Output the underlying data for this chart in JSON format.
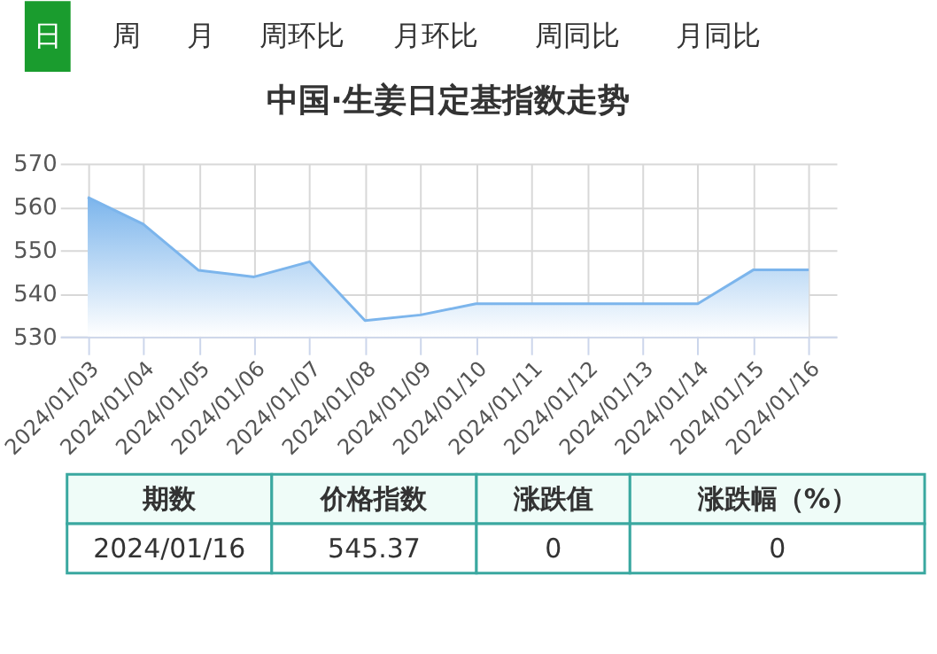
{
  "chart_data": {
    "type": "area",
    "title": "中国·生姜日定基指数走势",
    "categories": [
      "2024/01/03",
      "2024/01/04",
      "2024/01/05",
      "2024/01/06",
      "2024/01/07",
      "2024/01/08",
      "2024/01/09",
      "2024/01/10",
      "2024/01/11",
      "2024/01/12",
      "2024/01/13",
      "2024/01/14",
      "2024/01/15",
      "2024/01/16"
    ],
    "series": [
      {
        "color": "#7cb5ec",
        "values": [
          562.2,
          556,
          545.3,
          543.8,
          547.3,
          533.7,
          535,
          537.6,
          537.6,
          537.6,
          537.6,
          537.6,
          545.4,
          545.4
        ]
      }
    ],
    "ylim": [
      530,
      570
    ],
    "yticks": [
      530,
      540,
      550,
      560,
      570
    ],
    "grid": true,
    "annotations": [
      "日",
      "周",
      "月",
      "周环比",
      "月环比",
      "周同比",
      "月同比",
      "期数",
      "价格指数",
      "涨跌值",
      "涨跌幅（%）",
      "2024/01/16",
      "545.37",
      "0",
      "0"
    ]
  }
}
